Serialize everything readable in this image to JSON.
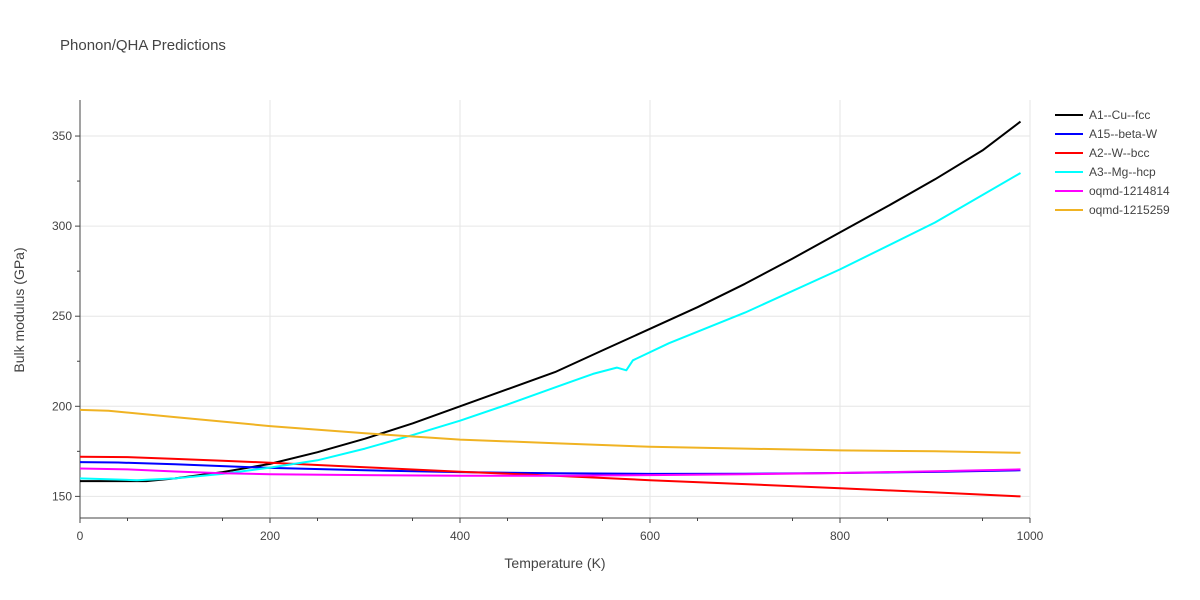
{
  "chart_data": {
    "type": "line",
    "title": "Phonon/QHA Predictions",
    "xlabel": "Temperature (K)",
    "ylabel": "Bulk modulus (GPa)",
    "xlim": [
      0,
      1000
    ],
    "ylim": [
      138,
      370
    ],
    "xticks": [
      0,
      200,
      400,
      600,
      800,
      1000
    ],
    "yticks": [
      150,
      200,
      250,
      300,
      350
    ],
    "grid": true,
    "legend_position": "right",
    "series": [
      {
        "name": "A1--Cu--fcc",
        "color": "#000000",
        "x": [
          0,
          70,
          100,
          150,
          200,
          250,
          300,
          350,
          400,
          450,
          500,
          550,
          600,
          650,
          700,
          750,
          800,
          850,
          900,
          950,
          990
        ],
        "y": [
          158.5,
          158.5,
          160,
          163.5,
          168,
          174.5,
          182,
          190.5,
          200,
          209.5,
          219,
          231,
          243,
          255,
          268,
          282,
          296.5,
          311,
          326,
          342,
          358
        ]
      },
      {
        "name": "A15--beta-W",
        "color": "#0000ff",
        "x": [
          0,
          40,
          100,
          150,
          200,
          300,
          400,
          500,
          600,
          700,
          800,
          900,
          990
        ],
        "y": [
          169,
          168.8,
          167.8,
          166.8,
          165.8,
          164.5,
          163.5,
          162.8,
          162.5,
          162.6,
          163,
          163.6,
          164.5
        ]
      },
      {
        "name": "A2--W--bcc",
        "color": "#ff0000",
        "x": [
          0,
          50,
          100,
          150,
          200,
          300,
          400,
          500,
          600,
          700,
          800,
          900,
          990
        ],
        "y": [
          172,
          171.8,
          170.8,
          169.8,
          168.7,
          166.2,
          163.7,
          161.5,
          159,
          156.8,
          154.5,
          152.2,
          150
        ]
      },
      {
        "name": "A3--Mg--hcp",
        "color": "#00ffff",
        "x": [
          0,
          60,
          100,
          150,
          200,
          250,
          300,
          350,
          400,
          450,
          500,
          540,
          565,
          575,
          582,
          620,
          700,
          800,
          900,
          990
        ],
        "y": [
          160,
          159,
          160,
          162.5,
          166,
          170,
          176.5,
          184,
          192,
          201,
          210.5,
          218,
          221.5,
          220,
          225.5,
          235,
          252,
          276,
          302,
          329.5
        ]
      },
      {
        "name": "oqmd-1214814",
        "color": "#ff00ff",
        "x": [
          0,
          50,
          100,
          150,
          200,
          300,
          400,
          500,
          600,
          700,
          800,
          900,
          990
        ],
        "y": [
          165.5,
          165,
          163.8,
          162.8,
          162.3,
          161.8,
          161.5,
          161.5,
          161.8,
          162.3,
          163,
          164,
          165
        ]
      },
      {
        "name": "oqmd-1215259",
        "color": "#f0b323",
        "x": [
          0,
          30,
          100,
          200,
          300,
          400,
          500,
          600,
          700,
          800,
          900,
          990
        ],
        "y": [
          198,
          197.5,
          194,
          189,
          185,
          181.5,
          179.5,
          177.5,
          176.5,
          175.5,
          175,
          174.2
        ]
      }
    ]
  }
}
